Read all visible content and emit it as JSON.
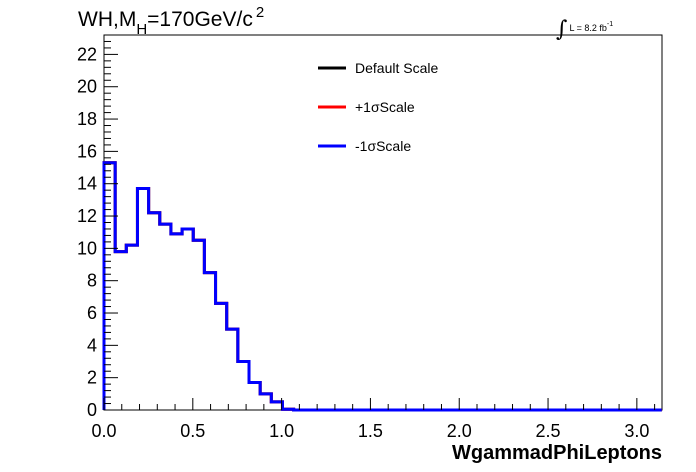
{
  "header": {
    "title_prefix": "WH,M",
    "title_sub": "H",
    "title_suffix": "=170GeV/c",
    "title_sup": "2",
    "lumi_integral": "∫",
    "lumi_text": "L = 8.2 fb",
    "lumi_sup": "-1"
  },
  "chart_data": {
    "type": "line",
    "style": "step-histogram",
    "xlabel": "WgammadPhiLeptons",
    "ylabel": "",
    "xlim": [
      0,
      3.14159
    ],
    "ylim": [
      0,
      23.2
    ],
    "grid": false,
    "legend_position": "top-center",
    "x_ticks": [
      0.0,
      0.5,
      1.0,
      1.5,
      2.0,
      2.5,
      3.0
    ],
    "x_tick_labels": [
      "0.0",
      "0.5",
      "1.0",
      "1.5",
      "2.0",
      "2.5",
      "3.0"
    ],
    "y_ticks": [
      0,
      2,
      4,
      6,
      8,
      10,
      12,
      14,
      16,
      18,
      20,
      22
    ],
    "y_tick_labels": [
      "0",
      "2",
      "4",
      "6",
      "8",
      "10",
      "12",
      "14",
      "16",
      "18",
      "20",
      "22"
    ],
    "bin_width": 0.0628,
    "bin_edges_start": 0,
    "series": [
      {
        "name": "Default Scale",
        "color": "#000000",
        "values": [
          15.3,
          9.8,
          10.2,
          13.7,
          12.2,
          11.5,
          10.9,
          11.2,
          10.5,
          8.5,
          6.6,
          5.0,
          3.0,
          1.7,
          1.0,
          0.5,
          0.05,
          0,
          0,
          0,
          0,
          0,
          0,
          0,
          0,
          0,
          0,
          0,
          0,
          0,
          0,
          0,
          0,
          0,
          0,
          0,
          0,
          0,
          0,
          0,
          0,
          0,
          0,
          0,
          0,
          0,
          0,
          0,
          0,
          0
        ]
      },
      {
        "name": "+1σScale",
        "color": "#ff0000",
        "values": [
          15.3,
          9.8,
          10.2,
          13.7,
          12.2,
          11.5,
          10.9,
          11.2,
          10.5,
          8.5,
          6.6,
          5.0,
          3.0,
          1.7,
          1.0,
          0.5,
          0.05,
          0,
          0,
          0,
          0,
          0,
          0,
          0,
          0,
          0,
          0,
          0,
          0,
          0,
          0,
          0,
          0,
          0,
          0,
          0,
          0,
          0,
          0,
          0,
          0,
          0,
          0,
          0,
          0,
          0,
          0,
          0,
          0,
          0
        ]
      },
      {
        "name": "-1σScale",
        "color": "#0000ff",
        "values": [
          15.3,
          9.8,
          10.2,
          13.7,
          12.2,
          11.5,
          10.9,
          11.2,
          10.5,
          8.5,
          6.6,
          5.0,
          3.0,
          1.7,
          1.0,
          0.5,
          0.05,
          0,
          0,
          0,
          0,
          0,
          0,
          0,
          0,
          0,
          0,
          0,
          0,
          0,
          0,
          0,
          0,
          0,
          0,
          0,
          0,
          0,
          0,
          0,
          0,
          0,
          0,
          0,
          0,
          0,
          0,
          0,
          0,
          0
        ]
      }
    ]
  }
}
